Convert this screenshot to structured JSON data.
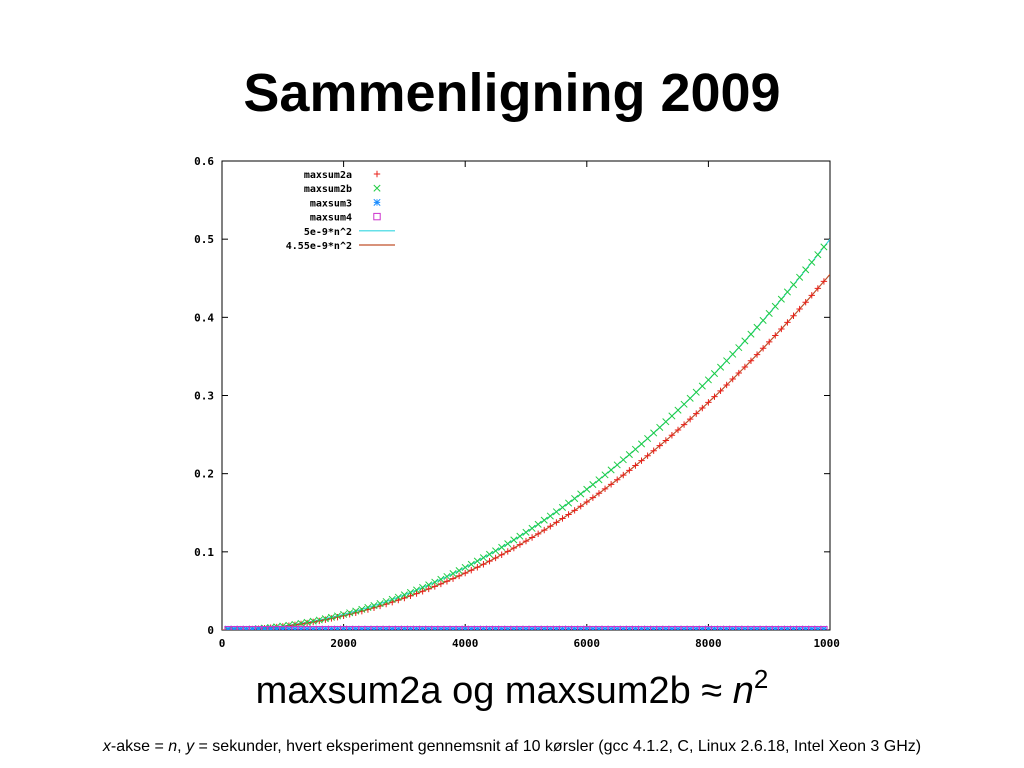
{
  "slide": {
    "title": "Sammenligning 2009",
    "subtitle": {
      "text": "maxsum2a og maxsum2b ≈ ",
      "var": "n",
      "exponent": "2"
    },
    "caption": {
      "x_var": "x",
      "x_rest": "-akse = ",
      "n_var": "n",
      "sep": ", ",
      "y_var": "y",
      "y_rest": " = sekunder, hvert eksperiment gennemsnit af 10 kørsler (gcc 4.1.2, C, Linux 2.6.18, Intel Xeon 3 GHz)"
    }
  },
  "chart_data": {
    "type": "scatter",
    "title": "",
    "xlabel": "",
    "ylabel": "",
    "xlim": [
      0,
      10000
    ],
    "ylim": [
      0,
      0.6
    ],
    "xticks": [
      "0",
      "2000",
      "4000",
      "6000",
      "8000",
      "10000"
    ],
    "yticks": [
      "0",
      "0.1",
      "0.2",
      "0.3",
      "0.4",
      "0.5",
      "0.6"
    ],
    "grid": false,
    "legend_position": "top-left",
    "series": [
      {
        "name": "maxsum2a",
        "marker": "+",
        "color": "#e8201a",
        "model_coef": 4.55e-09,
        "x_start": 100,
        "x_end": 9900,
        "x_step": 100
      },
      {
        "name": "maxsum2b",
        "marker": "x",
        "color": "#22cc44",
        "model_coef": 5e-09,
        "x_start": 100,
        "x_end": 9900,
        "x_step": 100
      },
      {
        "name": "maxsum3",
        "marker": "*",
        "color": "#1a8cff",
        "constant": 0.0012,
        "x_start": 100,
        "x_end": 9900,
        "x_step": 100
      },
      {
        "name": "maxsum4",
        "marker": "square",
        "color": "#cc33cc",
        "constant": 0.0004,
        "x_start": 100,
        "x_end": 9900,
        "x_step": 100
      }
    ],
    "curves": [
      {
        "name": "5e-9*n^2",
        "coef": 5e-09,
        "color": "#33d6e0"
      },
      {
        "name": "4.55e-9*n^2",
        "coef": 4.55e-09,
        "color": "#c0502a"
      }
    ]
  }
}
